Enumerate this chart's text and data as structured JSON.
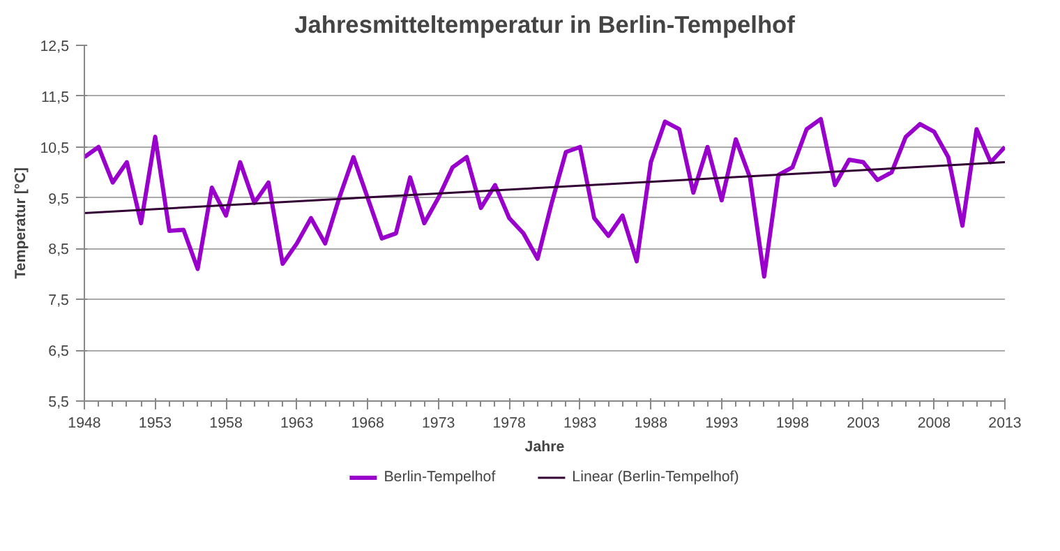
{
  "chart_data": {
    "type": "line",
    "title": "Jahresmitteltemperatur in Berlin-Tempelhof",
    "xlabel": "Jahre",
    "ylabel": "Temperatur [°C]",
    "x": [
      1948,
      1949,
      1950,
      1951,
      1952,
      1953,
      1954,
      1955,
      1956,
      1957,
      1958,
      1959,
      1960,
      1961,
      1962,
      1963,
      1964,
      1965,
      1966,
      1967,
      1968,
      1969,
      1970,
      1971,
      1972,
      1973,
      1974,
      1975,
      1976,
      1977,
      1978,
      1979,
      1980,
      1981,
      1982,
      1983,
      1984,
      1985,
      1986,
      1987,
      1988,
      1989,
      1990,
      1991,
      1992,
      1993,
      1994,
      1995,
      1996,
      1997,
      1998,
      1999,
      2000,
      2001,
      2002,
      2003,
      2004,
      2005,
      2006,
      2007,
      2008,
      2009,
      2010,
      2011,
      2012,
      2013
    ],
    "series": [
      {
        "name": "Berlin-Tempelhof",
        "color": "#9900cc",
        "values": [
          10.3,
          10.5,
          9.8,
          10.2,
          9.0,
          10.7,
          8.85,
          8.87,
          8.1,
          9.7,
          9.15,
          10.2,
          9.4,
          9.8,
          8.2,
          8.6,
          9.1,
          8.6,
          9.5,
          10.3,
          9.5,
          8.7,
          8.8,
          9.9,
          9.0,
          9.5,
          10.1,
          10.3,
          9.3,
          9.75,
          9.1,
          8.8,
          8.3,
          9.4,
          10.4,
          10.5,
          9.1,
          8.75,
          9.15,
          8.25,
          10.2,
          11.0,
          10.85,
          9.6,
          10.5,
          9.45,
          10.65,
          9.9,
          7.95,
          9.95,
          10.1,
          10.85,
          11.05,
          9.75,
          10.25,
          10.2,
          9.85,
          10.0,
          10.7,
          10.95,
          10.8,
          10.3,
          8.95,
          10.85,
          10.2,
          10.5
        ]
      },
      {
        "name": "Linear (Berlin-Tempelhof)",
        "color": "#330033",
        "x": [
          1948,
          2013
        ],
        "values": [
          9.2,
          10.2
        ]
      }
    ],
    "xlim": [
      1948,
      2013
    ],
    "xticks": [
      1948,
      1953,
      1958,
      1963,
      1968,
      1973,
      1978,
      1983,
      1988,
      1993,
      1998,
      2003,
      2008,
      2013
    ],
    "ylim": [
      5.5,
      12.5
    ],
    "yticks": [
      {
        "value": 5.5,
        "label": "5,5"
      },
      {
        "value": 6.5,
        "label": "6,5"
      },
      {
        "value": 7.5,
        "label": "7,5"
      },
      {
        "value": 8.5,
        "label": "8,5"
      },
      {
        "value": 9.5,
        "label": "9,5"
      },
      {
        "value": 10.5,
        "label": "10,5"
      },
      {
        "value": 11.5,
        "label": "11,5"
      },
      {
        "value": 12.5,
        "label": "12,5"
      }
    ],
    "grid": "y",
    "legend": "bottom",
    "marker": "none",
    "line_style": "solid"
  }
}
